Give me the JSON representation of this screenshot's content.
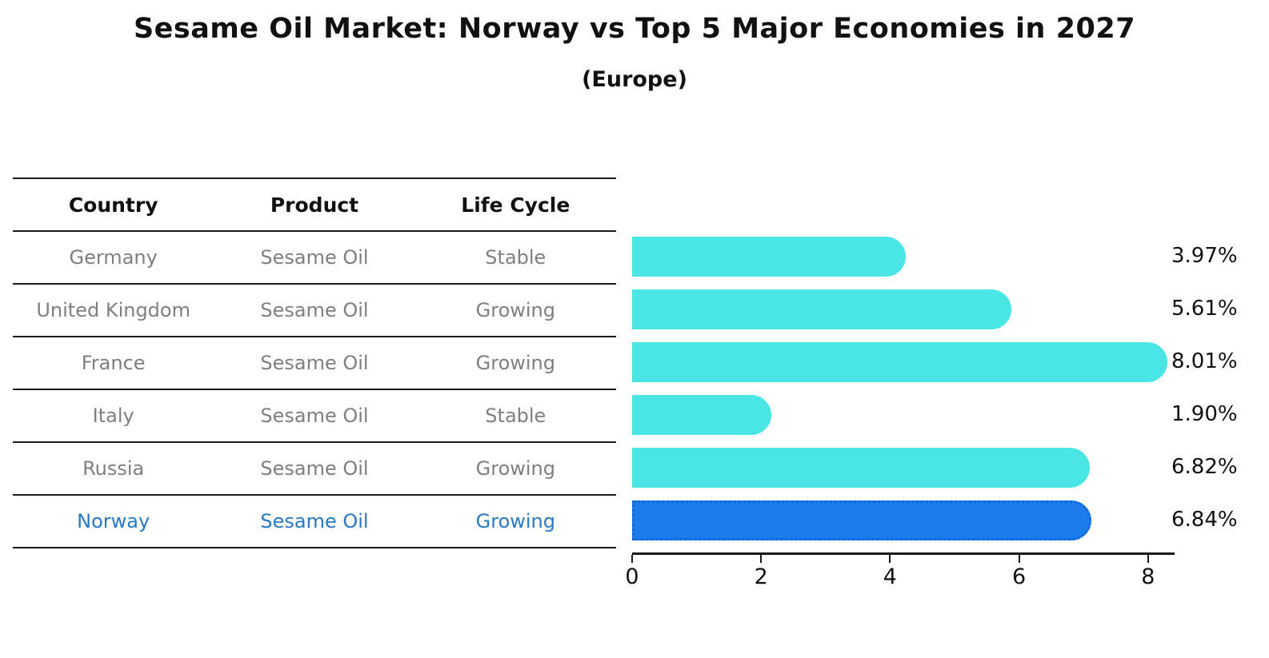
{
  "title": "Sesame Oil Market: Norway vs Top 5 Major Economies in 2027",
  "subtitle": "(Europe)",
  "table": {
    "headers": [
      "Country",
      "Product",
      "Life Cycle"
    ],
    "rows": [
      {
        "country": "Germany",
        "product": "Sesame Oil",
        "life_cycle": "Stable",
        "highlighted": false
      },
      {
        "country": "United Kingdom",
        "product": "Sesame Oil",
        "life_cycle": "Growing",
        "highlighted": false
      },
      {
        "country": "France",
        "product": "Sesame Oil",
        "life_cycle": "Growing",
        "highlighted": false
      },
      {
        "country": "Italy",
        "product": "Sesame Oil",
        "life_cycle": "Stable",
        "highlighted": false
      },
      {
        "country": "Russia",
        "product": "Sesame Oil",
        "life_cycle": "Growing",
        "highlighted": false
      },
      {
        "country": "Norway",
        "product": "Sesame Oil",
        "life_cycle": "Growing",
        "highlighted": true
      }
    ]
  },
  "chart_data": {
    "type": "bar",
    "orientation": "horizontal",
    "title": "Sesame Oil Market: Norway vs Top 5 Major Economies in 2027",
    "subtitle": "(Europe)",
    "categories": [
      "Germany",
      "United Kingdom",
      "France",
      "Italy",
      "Russia",
      "Norway"
    ],
    "values": [
      3.97,
      5.61,
      8.01,
      1.9,
      6.82,
      6.84
    ],
    "labels": [
      "3.97%",
      "5.61%",
      "8.01%",
      "1.90%",
      "6.82%",
      "6.84%"
    ],
    "x_ticks": [
      "0",
      "2",
      "4",
      "6",
      "8"
    ],
    "xlim": [
      0,
      8.4
    ],
    "grid": false,
    "legend": "none",
    "bar_color": "#4ae6e6",
    "highlight_color": "#1d7cec",
    "highlight_border_color": "#1266d8",
    "highlight_index": 5,
    "highlight_text_color": "#2779c7"
  }
}
